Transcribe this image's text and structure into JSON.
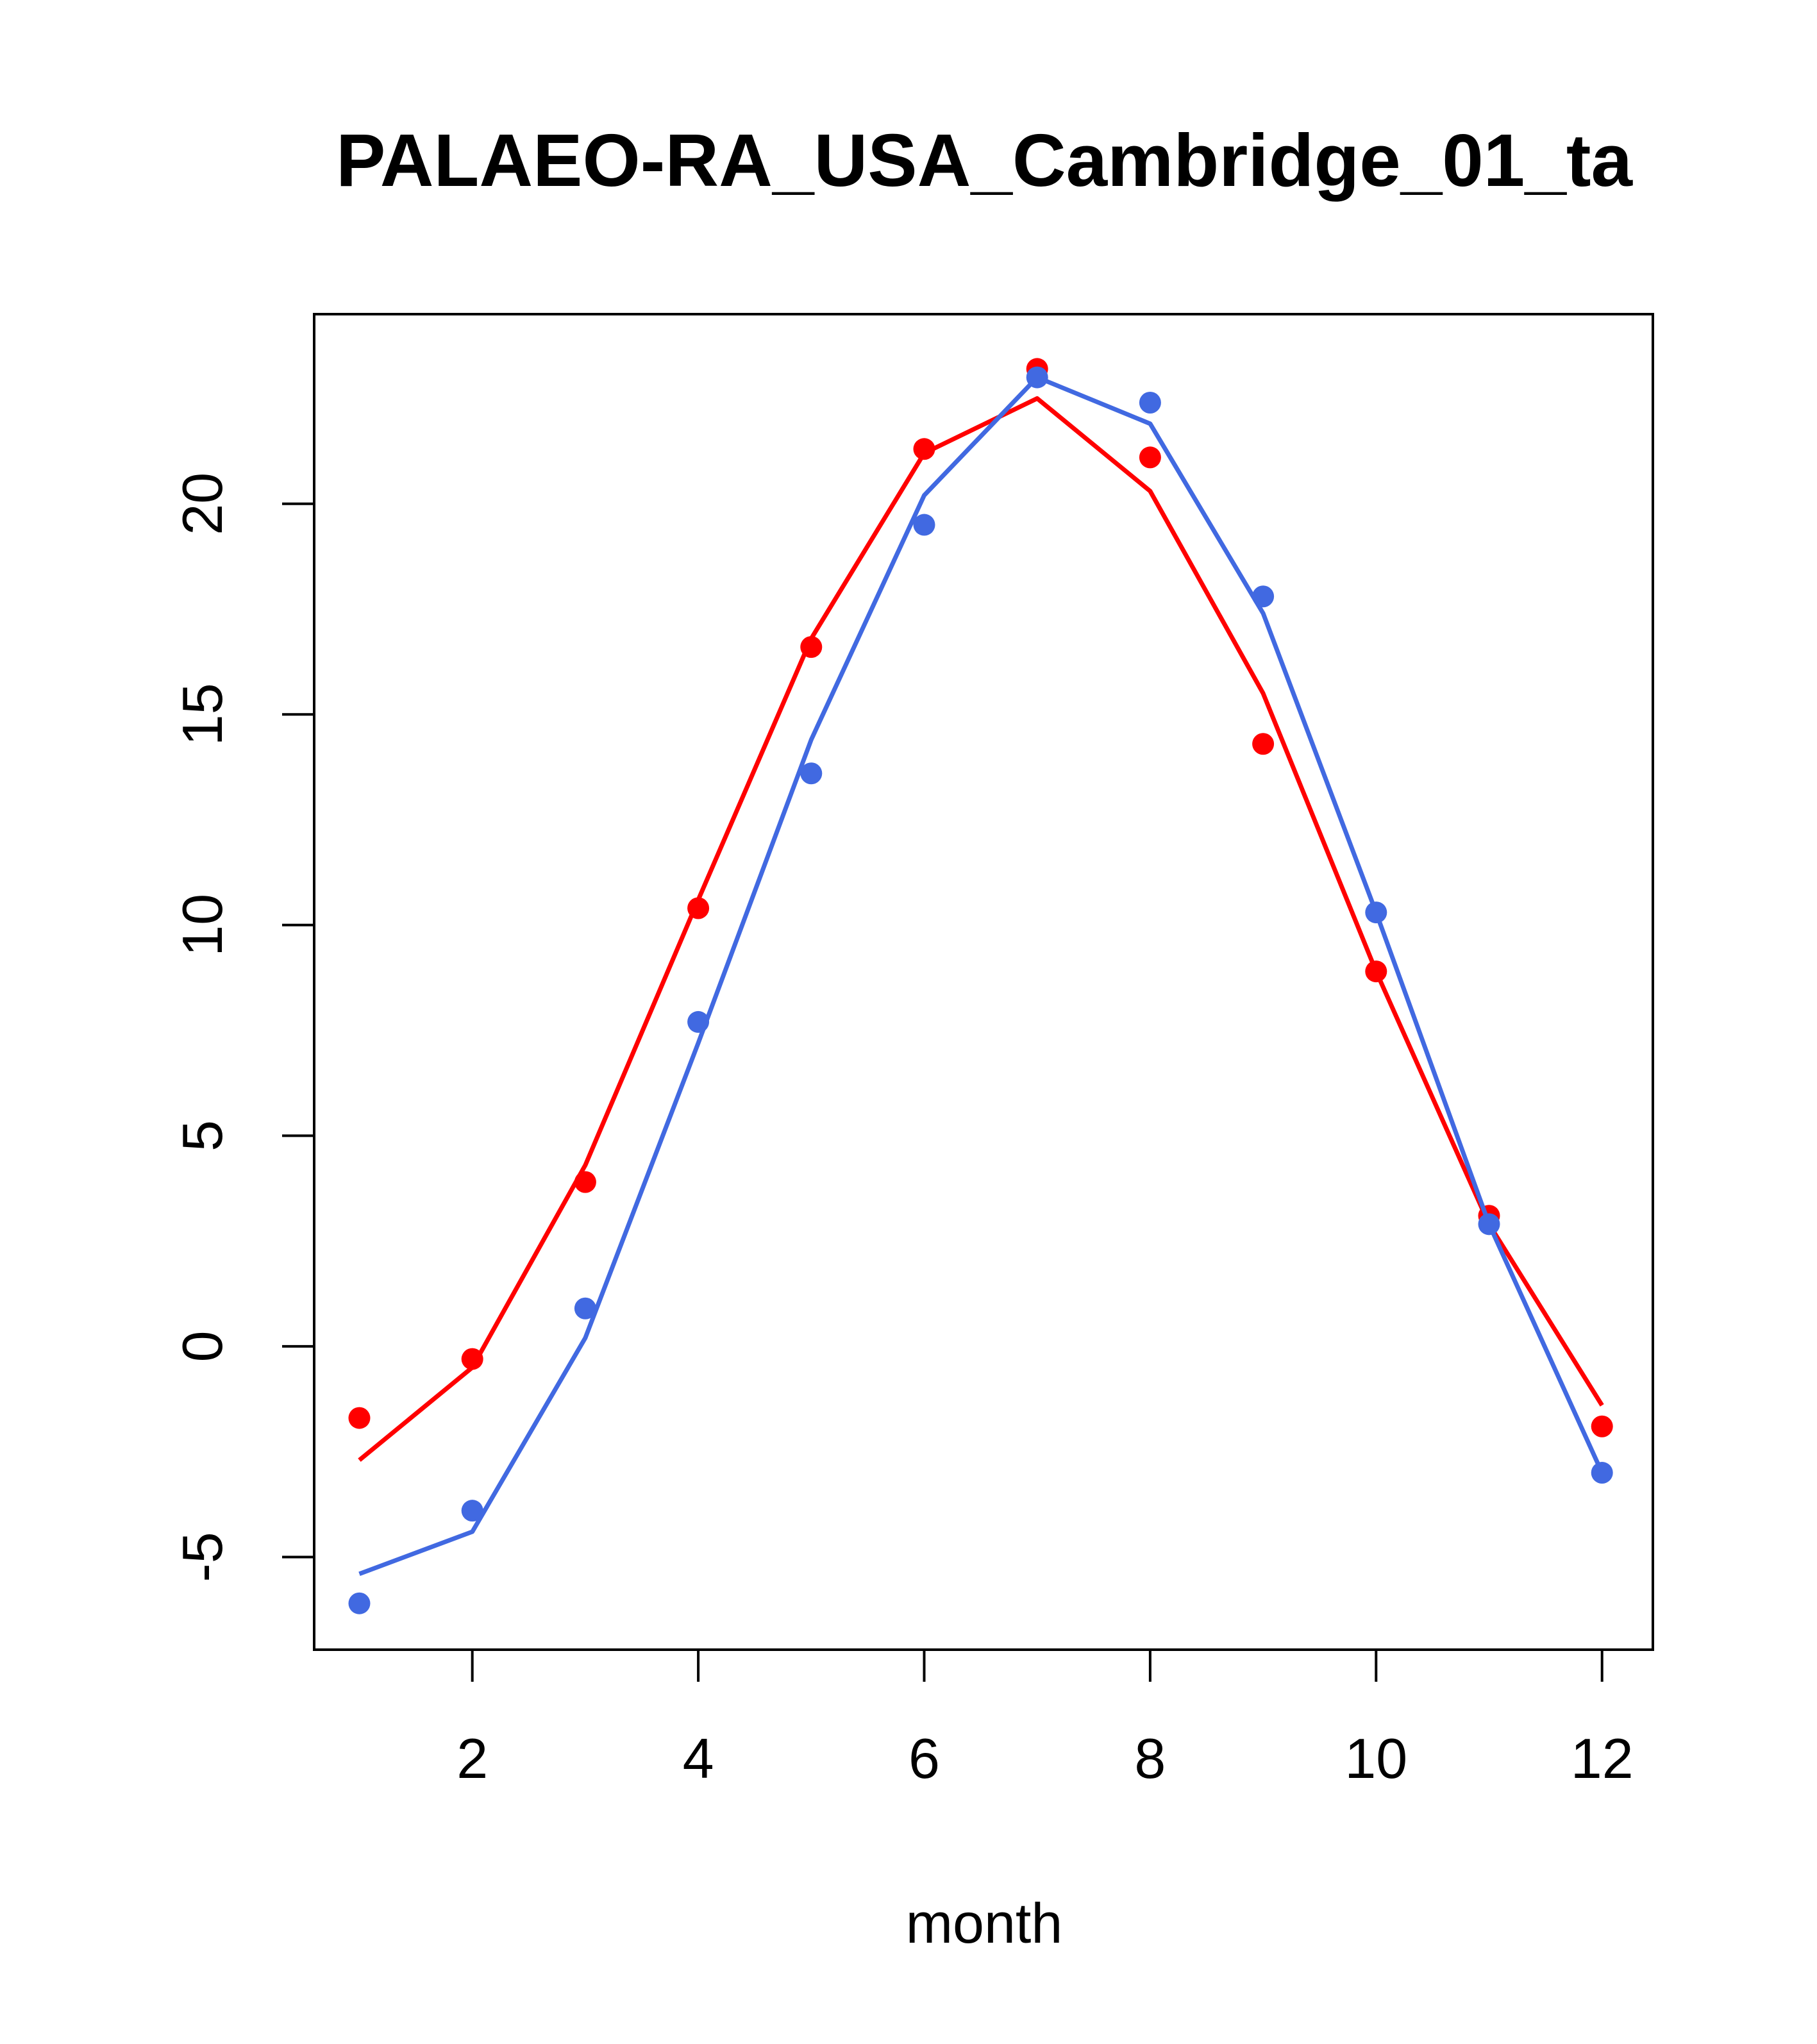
{
  "chart_data": {
    "type": "line",
    "title": "PALAEO-RA_USA_Cambridge_01_ta",
    "xlabel": "month",
    "ylabel": "",
    "xlim": [
      0.6,
      12.45
    ],
    "ylim": [
      -7.2,
      24.5
    ],
    "x_ticks": [
      2,
      4,
      6,
      8,
      10,
      12
    ],
    "y_ticks": [
      -5,
      0,
      5,
      10,
      15,
      20
    ],
    "grid": false,
    "legend": "none",
    "x": [
      1,
      2,
      3,
      4,
      5,
      6,
      7,
      8,
      9,
      10,
      11,
      12
    ],
    "series": [
      {
        "color": "#ff0000",
        "points": [
          -1.7,
          -0.3,
          3.9,
          10.4,
          16.6,
          21.3,
          23.2,
          21.1,
          14.3,
          8.9,
          3.1,
          -1.9
        ],
        "line": [
          -2.7,
          -0.5,
          4.3,
          10.6,
          16.8,
          21.2,
          22.5,
          20.3,
          15.5,
          8.9,
          2.9,
          -1.4
        ]
      },
      {
        "color": "#4169e1",
        "points": [
          -6.1,
          -3.9,
          0.9,
          7.7,
          13.6,
          19.5,
          23.0,
          22.4,
          17.8,
          10.3,
          2.9,
          -3.0
        ],
        "line": [
          -5.4,
          -4.4,
          0.2,
          7.2,
          14.4,
          20.2,
          23.0,
          21.9,
          17.4,
          10.3,
          2.9,
          -3.0
        ]
      }
    ]
  }
}
